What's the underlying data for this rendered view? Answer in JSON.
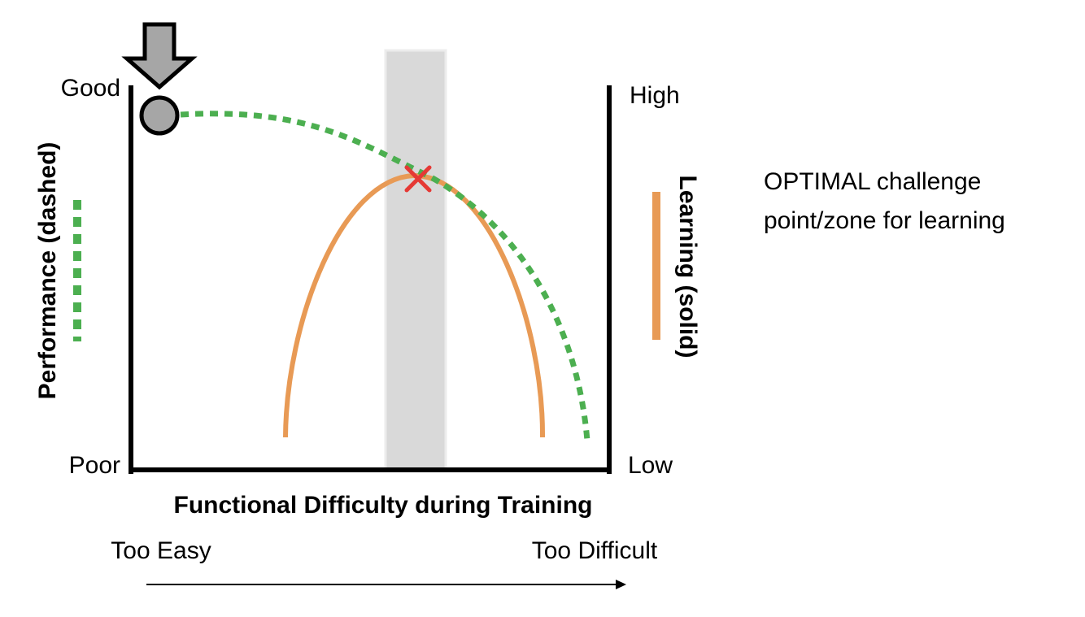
{
  "left_axis": {
    "top_label": "Good",
    "bottom_label": "Poor",
    "title": "Performance (dashed)"
  },
  "right_axis": {
    "top_label": "High",
    "bottom_label": "Low",
    "title": "Learning (solid)"
  },
  "x_axis": {
    "title": "Functional Difficulty during Training",
    "left_label": "Too Easy",
    "right_label": "Too Difficult"
  },
  "annotation": {
    "line1": "OPTIMAL challenge",
    "line2": "point/zone for learning"
  },
  "colors": {
    "performance": "#4caf50",
    "learning": "#e89a55",
    "optimal_zone": "#d9d9d9",
    "optimal_marker": "#e53935",
    "start_marker": "#a6a6a6",
    "axis": "#000000"
  }
}
